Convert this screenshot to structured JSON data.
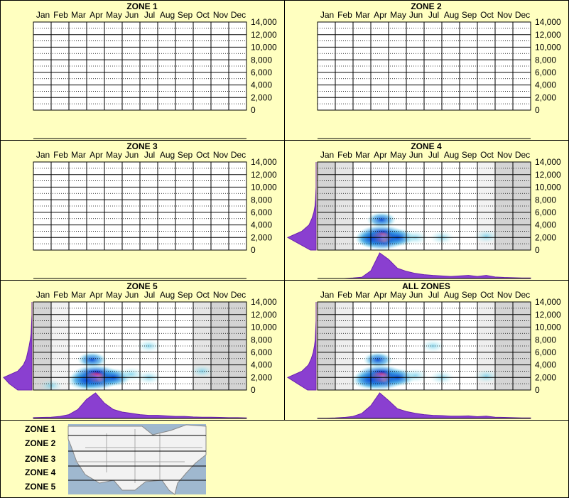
{
  "chart_data": [
    {
      "type": "heatmap",
      "title": "ZONE 1",
      "categories": [
        "Jan",
        "Feb",
        "Mar",
        "Apr",
        "May",
        "Jun",
        "Jul",
        "Aug",
        "Sep",
        "Oct",
        "Nov",
        "Dec"
      ],
      "ylim": [
        0,
        14000
      ],
      "yticks": [
        0,
        {
          "value": 2000,
          "label": "2,000"
        },
        {
          "value": 4000,
          "label": "4,000"
        },
        {
          "value": 6000,
          "label": "6,000"
        },
        {
          "value": 8000,
          "label": "8,000"
        },
        {
          "value": 10000,
          "label": "10,000"
        },
        {
          "value": 12000,
          "label": "12,000"
        },
        {
          "value": 14000,
          "label": "14,000"
        }
      ],
      "grid": true
    },
    {
      "type": "heatmap",
      "title": "ZONE 2",
      "categories": [
        "Jan",
        "Feb",
        "Mar",
        "Apr",
        "May",
        "Jun",
        "Jul",
        "Aug",
        "Sep",
        "Oct",
        "Nov",
        "Dec"
      ],
      "ylim": [
        0,
        14000
      ],
      "yticks": [
        0,
        {
          "value": 2000,
          "label": "2,000"
        },
        {
          "value": 4000,
          "label": "4,000"
        },
        {
          "value": 6000,
          "label": "6,000"
        },
        {
          "value": 8000,
          "label": "8,000"
        },
        {
          "value": 10000,
          "label": "10,000"
        },
        {
          "value": 12000,
          "label": "12,000"
        },
        {
          "value": 14000,
          "label": "14,000"
        }
      ],
      "grid": true
    },
    {
      "type": "heatmap",
      "title": "ZONE 3",
      "categories": [
        "Jan",
        "Feb",
        "Mar",
        "Apr",
        "May",
        "Jun",
        "Jul",
        "Aug",
        "Sep",
        "Oct",
        "Nov",
        "Dec"
      ],
      "ylim": [
        0,
        14000
      ],
      "yticks": [
        0,
        {
          "value": 2000,
          "label": "2,000"
        },
        {
          "value": 4000,
          "label": "4,000"
        },
        {
          "value": 6000,
          "label": "6,000"
        },
        {
          "value": 8000,
          "label": "8,000"
        },
        {
          "value": 10000,
          "label": "10,000"
        },
        {
          "value": 12000,
          "label": "12,000"
        },
        {
          "value": 14000,
          "label": "14,000"
        }
      ],
      "grid": true
    },
    {
      "type": "heatmap",
      "title": "ZONE 4",
      "categories": [
        "Jan",
        "Feb",
        "Mar",
        "Apr",
        "May",
        "Jun",
        "Jul",
        "Aug",
        "Sep",
        "Oct",
        "Nov",
        "Dec"
      ],
      "ylim": [
        0,
        14000
      ],
      "yticks": [
        0,
        {
          "value": 2000,
          "label": "2,000"
        },
        {
          "value": 4000,
          "label": "4,000"
        },
        {
          "value": 6000,
          "label": "6,000"
        },
        {
          "value": 8000,
          "label": "8,000"
        },
        {
          "value": 10000,
          "label": "10,000"
        },
        {
          "value": 12000,
          "label": "12,000"
        },
        {
          "value": 14000,
          "label": "14,000"
        }
      ],
      "grid": true,
      "shaded_months": [
        1,
        0.6,
        0,
        0,
        0,
        0,
        0,
        0,
        0,
        0.3,
        1,
        1
      ],
      "hotspots": [
        {
          "x": 3.6,
          "y": 2000,
          "weight": 1
        },
        {
          "x": 3.1,
          "y": 1800,
          "weight": 0.5
        },
        {
          "x": 4.5,
          "y": 2000,
          "weight": 0.5
        },
        {
          "x": 3.6,
          "y": 4800,
          "weight": 0.3
        },
        {
          "x": 5.5,
          "y": 2000,
          "weight": 0.2
        },
        {
          "x": 7.0,
          "y": 2000,
          "weight": 0.15
        },
        {
          "x": 9.5,
          "y": 2200,
          "weight": 0.15
        }
      ],
      "month_profile": {
        "x": [
          0,
          0.5,
          1,
          1.5,
          2,
          2.5,
          3,
          3.5,
          4,
          4.5,
          5,
          5.5,
          6,
          6.5,
          7,
          7.5,
          8,
          8.5,
          9,
          9.5,
          10,
          10.5,
          11,
          11.5,
          12
        ],
        "values": [
          0,
          0,
          0,
          0,
          0.02,
          0.05,
          0.3,
          1,
          0.75,
          0.4,
          0.28,
          0.2,
          0.15,
          0.12,
          0.1,
          0.08,
          0.1,
          0.12,
          0.08,
          0.12,
          0.06,
          0.04,
          0.03,
          0.02,
          0.02
        ]
      },
      "elevation_profile": {
        "y": [
          0,
          1000,
          2000,
          3000,
          4000,
          5000,
          6000,
          7000,
          8000,
          9000,
          10000,
          11000,
          12000,
          13000,
          14000
        ],
        "values": [
          0.2,
          0.6,
          1,
          0.5,
          0.25,
          0.15,
          0.08,
          0.04,
          0.02,
          0.01,
          0,
          0,
          0,
          0,
          0
        ]
      }
    },
    {
      "type": "heatmap",
      "title": "ZONE 5",
      "categories": [
        "Jan",
        "Feb",
        "Mar",
        "Apr",
        "May",
        "Jun",
        "Jul",
        "Aug",
        "Sep",
        "Oct",
        "Nov",
        "Dec"
      ],
      "ylim": [
        0,
        14000
      ],
      "yticks": [
        0,
        {
          "value": 2000,
          "label": "2,000"
        },
        {
          "value": 4000,
          "label": "4,000"
        },
        {
          "value": 6000,
          "label": "6,000"
        },
        {
          "value": 8000,
          "label": "8,000"
        },
        {
          "value": 10000,
          "label": "10,000"
        },
        {
          "value": 12000,
          "label": "12,000"
        },
        {
          "value": 14000,
          "label": "14,000"
        }
      ],
      "grid": true,
      "shaded_months": [
        1,
        0.3,
        0,
        0,
        0,
        0,
        0,
        0,
        0,
        0.6,
        1,
        1
      ],
      "hotspots": [
        {
          "x": 3.5,
          "y": 2000,
          "weight": 1
        },
        {
          "x": 3.0,
          "y": 1500,
          "weight": 0.6
        },
        {
          "x": 4.5,
          "y": 2000,
          "weight": 0.5
        },
        {
          "x": 3.3,
          "y": 4800,
          "weight": 0.3
        },
        {
          "x": 5.5,
          "y": 2500,
          "weight": 0.2
        },
        {
          "x": 6.5,
          "y": 7000,
          "weight": 0.1
        },
        {
          "x": 9.5,
          "y": 3000,
          "weight": 0.1
        },
        {
          "x": 1.0,
          "y": 700,
          "weight": 0.1
        },
        {
          "x": 6.5,
          "y": 2000,
          "weight": 0.15
        }
      ],
      "month_profile": {
        "x": [
          0,
          0.5,
          1,
          1.5,
          2,
          2.5,
          3,
          3.5,
          4,
          4.5,
          5,
          5.5,
          6,
          6.5,
          7,
          7.5,
          8,
          8.5,
          9,
          9.5,
          10,
          10.5,
          11,
          11.5,
          12
        ],
        "values": [
          0.03,
          0.04,
          0.05,
          0.08,
          0.15,
          0.35,
          0.75,
          1,
          0.6,
          0.35,
          0.25,
          0.2,
          0.15,
          0.12,
          0.12,
          0.1,
          0.08,
          0.08,
          0.06,
          0.05,
          0.05,
          0.04,
          0.03,
          0.03,
          0.02
        ]
      },
      "elevation_profile": {
        "y": [
          0,
          1000,
          2000,
          3000,
          4000,
          5000,
          6000,
          7000,
          8000,
          9000,
          10000,
          11000,
          12000,
          13000,
          14000
        ],
        "values": [
          0.5,
          0.8,
          1,
          0.5,
          0.3,
          0.2,
          0.15,
          0.1,
          0.06,
          0.03,
          0.02,
          0.01,
          0,
          0,
          0
        ]
      }
    },
    {
      "type": "heatmap",
      "title": "ALL ZONES",
      "categories": [
        "Jan",
        "Feb",
        "Mar",
        "Apr",
        "May",
        "Jun",
        "Jul",
        "Aug",
        "Sep",
        "Oct",
        "Nov",
        "Dec"
      ],
      "ylim": [
        0,
        14000
      ],
      "yticks": [
        0,
        {
          "value": 2000,
          "label": "2,000"
        },
        {
          "value": 4000,
          "label": "4,000"
        },
        {
          "value": 6000,
          "label": "6,000"
        },
        {
          "value": 8000,
          "label": "8,000"
        },
        {
          "value": 10000,
          "label": "10,000"
        },
        {
          "value": 12000,
          "label": "12,000"
        },
        {
          "value": 14000,
          "label": "14,000"
        }
      ],
      "grid": true,
      "shaded_months": [
        1,
        0.4,
        0,
        0,
        0,
        0,
        0,
        0,
        0,
        0.4,
        1,
        1
      ],
      "hotspots": [
        {
          "x": 3.55,
          "y": 2000,
          "weight": 1
        },
        {
          "x": 3.0,
          "y": 1600,
          "weight": 0.6
        },
        {
          "x": 4.5,
          "y": 2000,
          "weight": 0.5
        },
        {
          "x": 3.4,
          "y": 4800,
          "weight": 0.3
        },
        {
          "x": 5.5,
          "y": 2300,
          "weight": 0.2
        },
        {
          "x": 7.0,
          "y": 2000,
          "weight": 0.15
        },
        {
          "x": 9.5,
          "y": 2200,
          "weight": 0.15
        },
        {
          "x": 6.5,
          "y": 7000,
          "weight": 0.1
        }
      ],
      "month_profile": {
        "x": [
          0,
          0.5,
          1,
          1.5,
          2,
          2.5,
          3,
          3.5,
          4,
          4.5,
          5,
          5.5,
          6,
          6.5,
          7,
          7.5,
          8,
          8.5,
          9,
          9.5,
          10,
          10.5,
          11,
          11.5,
          12
        ],
        "values": [
          0.01,
          0.01,
          0.02,
          0.04,
          0.08,
          0.2,
          0.5,
          1,
          0.7,
          0.38,
          0.27,
          0.2,
          0.15,
          0.12,
          0.11,
          0.09,
          0.09,
          0.1,
          0.07,
          0.09,
          0.05,
          0.04,
          0.03,
          0.02,
          0.02
        ]
      },
      "elevation_profile": {
        "y": [
          0,
          1000,
          2000,
          3000,
          4000,
          5000,
          6000,
          7000,
          8000,
          9000,
          10000,
          11000,
          12000,
          13000,
          14000
        ],
        "values": [
          0.3,
          0.65,
          1,
          0.5,
          0.27,
          0.17,
          0.1,
          0.06,
          0.03,
          0.02,
          0.01,
          0,
          0,
          0,
          0
        ]
      }
    }
  ],
  "legend": {
    "zones": [
      "ZONE 1",
      "ZONE 2",
      "ZONE 3",
      "ZONE 4",
      "ZONE 5"
    ]
  }
}
